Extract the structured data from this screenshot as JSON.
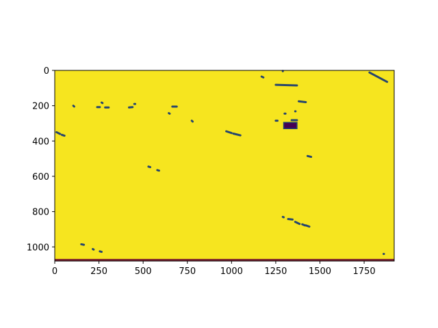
{
  "chart_data": {
    "type": "heatmap",
    "title": "",
    "xlabel": "",
    "ylabel": "",
    "xlim": [
      0,
      1920
    ],
    "ylim": [
      1080,
      0
    ],
    "x_ticks": [
      0,
      250,
      500,
      750,
      1000,
      1250,
      1500,
      1750
    ],
    "y_ticks": [
      0,
      200,
      400,
      600,
      800,
      1000
    ],
    "grid": false,
    "legend": "none",
    "colormap": "viridis",
    "colors": {
      "background": "#f6e51f",
      "feature": "#26456e",
      "dense": "#440154",
      "bottom_band": "#7b1f2e"
    },
    "features": [
      {
        "x": [
          1180,
          1170
        ],
        "y": [
          40,
          35
        ]
      },
      {
        "x": [
          1290,
          1290
        ],
        "y": [
          3,
          5
        ]
      },
      {
        "x": [
          1780,
          1880
        ],
        "y": [
          12,
          65
        ]
      },
      {
        "x": [
          1250,
          1370
        ],
        "y": [
          82,
          85
        ]
      },
      {
        "x": [
          1420,
          1380
        ],
        "y": [
          180,
          175
        ]
      },
      {
        "x": [
          110,
          105
        ],
        "y": [
          205,
          200
        ]
      },
      {
        "x": [
          240,
          255
        ],
        "y": [
          208,
          208
        ]
      },
      {
        "x": [
          285,
          305
        ],
        "y": [
          210,
          210
        ]
      },
      {
        "x": [
          270,
          265
        ],
        "y": [
          185,
          182
        ]
      },
      {
        "x": [
          420,
          440
        ],
        "y": [
          210,
          208
        ]
      },
      {
        "x": [
          450,
          455
        ],
        "y": [
          190,
          190
        ]
      },
      {
        "x": [
          665,
          690
        ],
        "y": [
          205,
          205
        ]
      },
      {
        "x": [
          650,
          645
        ],
        "y": [
          245,
          242
        ]
      },
      {
        "x": [
          1300,
          1305
        ],
        "y": [
          245,
          245
        ]
      },
      {
        "x": [
          1360,
          1362
        ],
        "y": [
          232,
          232
        ]
      },
      {
        "x": [
          780,
          775
        ],
        "y": [
          290,
          285
        ]
      },
      {
        "x": [
          1250,
          1260
        ],
        "y": [
          285,
          285
        ]
      },
      {
        "x": [
          1340,
          1370
        ],
        "y": [
          282,
          282
        ]
      },
      {
        "x": [
          10,
          30
        ],
        "y": [
          350,
          360
        ]
      },
      {
        "x": [
          40,
          55
        ],
        "y": [
          365,
          370
        ]
      },
      {
        "x": [
          970,
          1000
        ],
        "y": [
          345,
          355
        ]
      },
      {
        "x": [
          1010,
          1050
        ],
        "y": [
          358,
          368
        ]
      },
      {
        "x": [
          1430,
          1450
        ],
        "y": [
          485,
          490
        ]
      },
      {
        "x": [
          530,
          540
        ],
        "y": [
          545,
          548
        ]
      },
      {
        "x": [
          580,
          590
        ],
        "y": [
          565,
          568
        ]
      },
      {
        "x": [
          1290,
          1295
        ],
        "y": [
          830,
          832
        ]
      },
      {
        "x": [
          1320,
          1345
        ],
        "y": [
          842,
          845
        ]
      },
      {
        "x": [
          1360,
          1385
        ],
        "y": [
          858,
          870
        ]
      },
      {
        "x": [
          1400,
          1415
        ],
        "y": [
          872,
          878
        ]
      },
      {
        "x": [
          1420,
          1440
        ],
        "y": [
          878,
          885
        ]
      },
      {
        "x": [
          150,
          165
        ],
        "y": [
          985,
          988
        ]
      },
      {
        "x": [
          215,
          220
        ],
        "y": [
          1012,
          1015
        ]
      },
      {
        "x": [
          255,
          265
        ],
        "y": [
          1025,
          1028
        ]
      },
      {
        "x": [
          1860,
          1862
        ],
        "y": [
          1040,
          1040
        ]
      }
    ],
    "dense_region": {
      "x": [
        1295,
        1370
      ],
      "y": [
        295,
        330
      ]
    },
    "bottom_band": {
      "y": [
        1068,
        1080
      ]
    }
  }
}
